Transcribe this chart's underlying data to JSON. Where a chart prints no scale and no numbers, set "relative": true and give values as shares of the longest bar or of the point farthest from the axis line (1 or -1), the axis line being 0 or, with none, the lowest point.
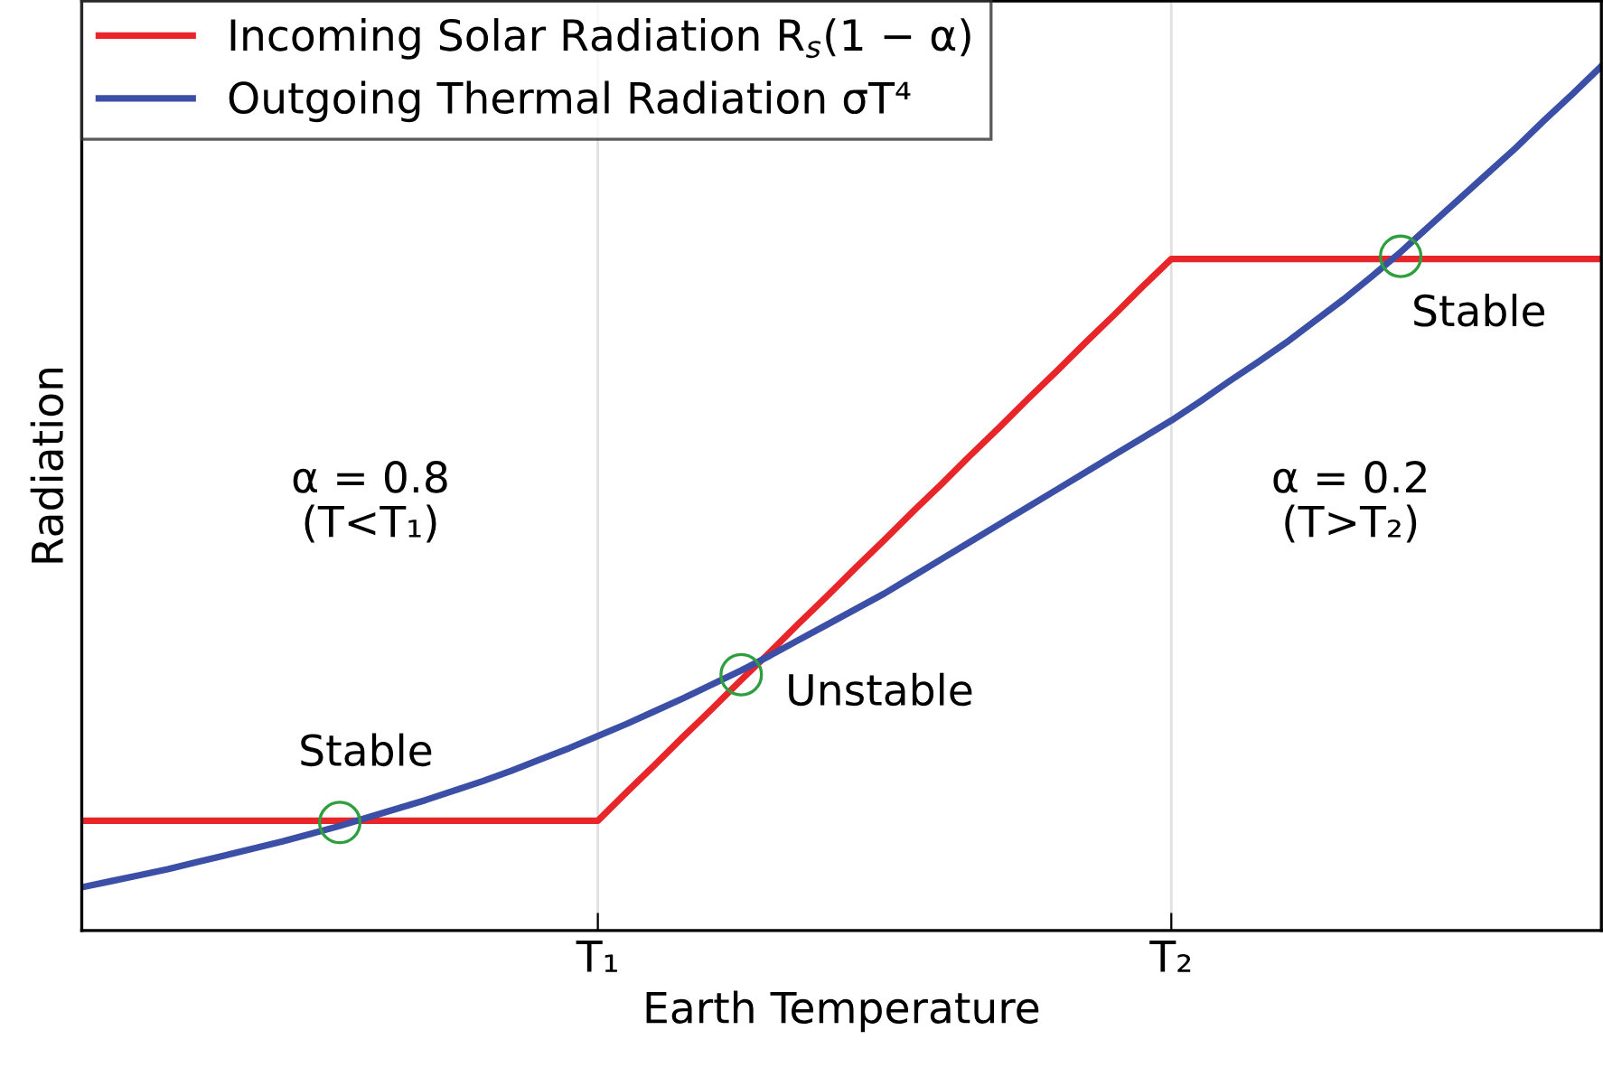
{
  "chart_data": {
    "type": "line",
    "relative": true,
    "xlabel": "Earth Temperature",
    "ylabel": "Radiation",
    "categories": [
      null,
      null,
      null,
      null,
      null,
      null,
      null,
      null,
      null,
      null,
      null,
      null,
      null,
      null,
      null,
      null,
      null,
      null,
      "T₁",
      null,
      null,
      null,
      null,
      null,
      null,
      null,
      null,
      null,
      null,
      null,
      null,
      null,
      null,
      null,
      null,
      null,
      null,
      null,
      "T₂",
      null,
      null,
      null,
      null,
      null,
      null,
      null,
      null,
      null,
      null,
      null,
      null,
      null,
      null,
      null
    ],
    "tick_labels": "x",
    "grid": "x",
    "legend": "top left",
    "line_style": "solid",
    "series": [
      {
        "name": "Incoming Solar Radiation R$_{s}$(1 − α)",
        "color": "#e8262a",
        "values": [
          0.127,
          0.127,
          0.127,
          0.127,
          0.127,
          0.127,
          0.127,
          0.127,
          0.127,
          0.127,
          0.127,
          0.127,
          0.127,
          0.127,
          0.127,
          0.127,
          0.127,
          0.127,
          0.127,
          0.16,
          0.192,
          0.225,
          0.257,
          0.29,
          0.322,
          0.355,
          0.387,
          0.42,
          0.452,
          0.485,
          0.517,
          0.55,
          0.582,
          0.615,
          0.647,
          0.68,
          0.712,
          0.745,
          0.777,
          0.777,
          0.777,
          0.777,
          0.777,
          0.777,
          0.777,
          0.777,
          0.777,
          0.777,
          0.777,
          0.777,
          0.777,
          0.777,
          0.777,
          0.777
        ]
      },
      {
        "name": "Outgoing Thermal Radiation σT⁴",
        "color": "#3a4fa5",
        "values": [
          0.05,
          0.057,
          0.064,
          0.071,
          0.079,
          0.087,
          0.095,
          0.103,
          0.112,
          0.121,
          0.131,
          0.141,
          0.151,
          0.162,
          0.173,
          0.185,
          0.198,
          0.211,
          0.225,
          0.239,
          0.254,
          0.269,
          0.285,
          0.301,
          0.318,
          0.336,
          0.354,
          0.372,
          0.39,
          0.41,
          0.43,
          0.45,
          0.47,
          0.49,
          0.51,
          0.53,
          0.55,
          0.57,
          0.59,
          0.612,
          0.635,
          0.657,
          0.68,
          0.705,
          0.73,
          0.757,
          0.785,
          0.815,
          0.845,
          0.875,
          0.905,
          0.937,
          0.968,
          1.0
        ]
      },
      {
        "type": "scatter",
        "marker": "circle",
        "color": "#2e9e3e",
        "values": [
          null,
          null,
          null,
          null,
          null,
          null,
          null,
          null,
          null,
          0.125,
          null,
          null,
          null,
          null,
          null,
          null,
          null,
          null,
          null,
          null,
          null,
          null,
          null,
          0.296,
          null,
          null,
          null,
          null,
          null,
          null,
          null,
          null,
          null,
          null,
          null,
          null,
          null,
          null,
          null,
          null,
          null,
          null,
          null,
          null,
          null,
          null,
          0.78,
          null,
          null,
          null,
          null,
          null,
          null,
          null
        ]
      }
    ],
    "annotations": [
      "Stable",
      "Unstable",
      "Stable",
      "α = 0.8\n(T<T₁)",
      "α = 0.2\n(T>T₂)"
    ]
  }
}
